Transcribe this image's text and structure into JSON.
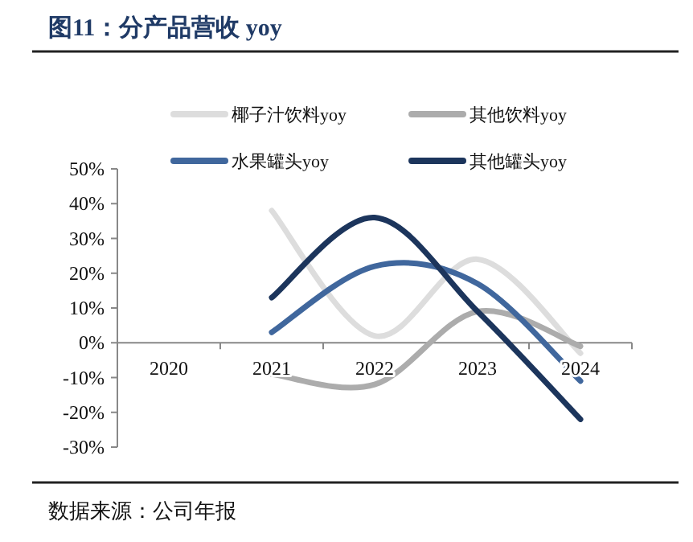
{
  "chart_data": {
    "type": "line",
    "title": "图11：分产品营收 yoy",
    "annotations": [
      "数据来源：公司年报"
    ],
    "categories": [
      "2020",
      "2021",
      "2022",
      "2023",
      "2024"
    ],
    "ylim": [
      -30,
      50
    ],
    "yticks": [
      {
        "value": -30,
        "label": "-30%"
      },
      {
        "value": -20,
        "label": "-20%"
      },
      {
        "value": -10,
        "label": "-10%"
      },
      {
        "value": 0,
        "label": "0%"
      },
      {
        "value": 10,
        "label": "10%"
      },
      {
        "value": 20,
        "label": "20%"
      },
      {
        "value": 30,
        "label": "30%"
      },
      {
        "value": 40,
        "label": "40%"
      },
      {
        "value": 50,
        "label": "50%"
      }
    ],
    "legend": "top",
    "grid": false,
    "series": [
      {
        "name": "椰子汁饮料yoy",
        "color": "#dddddd",
        "values": [
          null,
          38,
          2,
          24,
          -3
        ]
      },
      {
        "name": "其他饮料yoy",
        "color": "#acacac",
        "values": [
          null,
          -9,
          -12,
          9,
          -1
        ]
      },
      {
        "name": "水果罐头yoy",
        "color": "#40679d",
        "values": [
          null,
          3,
          22,
          17,
          -11
        ]
      },
      {
        "name": "其他罐头yoy",
        "color": "#1c355c",
        "values": [
          null,
          13,
          36,
          9,
          -22
        ]
      }
    ]
  }
}
